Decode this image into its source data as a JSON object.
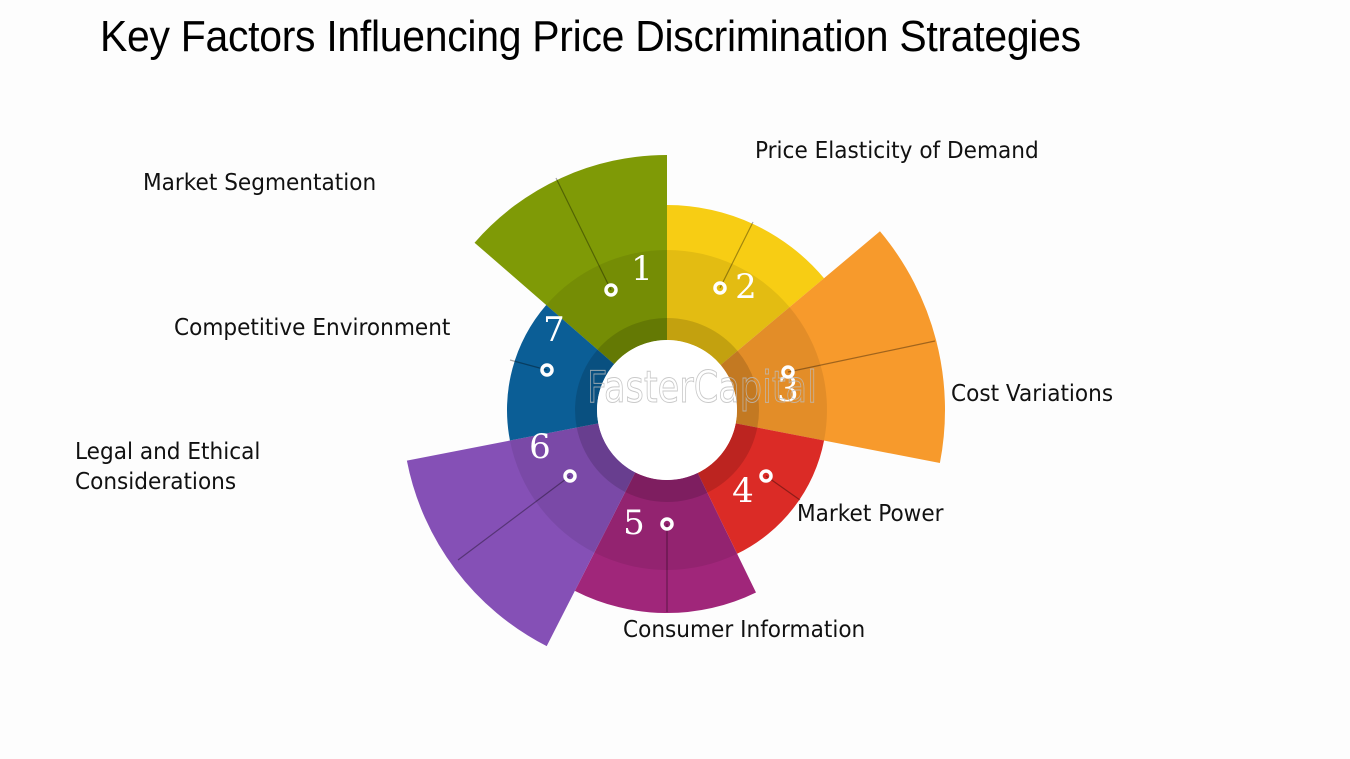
{
  "title": "Key Factors Influencing Price Discrimination Strategies",
  "watermark": "FasterCapital",
  "chart_data": {
    "type": "radial-bar",
    "center": [
      667,
      410
    ],
    "inner_radius": 70,
    "factors": [
      {
        "number": "1",
        "label": "Market Segmentation",
        "color": "#7f9a06",
        "start_deg": -139,
        "end_deg": -90,
        "outer_radius": 255
      },
      {
        "number": "2",
        "label": "Price Elasticity of Demand",
        "color": "#f7cd14",
        "start_deg": -90,
        "end_deg": -40,
        "outer_radius": 205
      },
      {
        "number": "3",
        "label": "Cost Variations",
        "color": "#f79a2c",
        "start_deg": -40,
        "end_deg": 11,
        "outer_radius": 278
      },
      {
        "number": "4",
        "label": "Market Power",
        "color": "#db2b26",
        "start_deg": 11,
        "end_deg": 64,
        "outer_radius": 160
      },
      {
        "number": "5",
        "label": "Consumer Information",
        "color": "#a0267a",
        "start_deg": 64,
        "end_deg": 117,
        "outer_radius": 203
      },
      {
        "number": "6",
        "label": "Legal and Ethical Considerations",
        "color": "#8550b6",
        "start_deg": 117,
        "end_deg": 169,
        "outer_radius": 265
      },
      {
        "number": "7",
        "label": "Competitive Environment",
        "color": "#0b5e96",
        "start_deg": 169,
        "end_deg": 221,
        "outer_radius": 160
      }
    ]
  },
  "labels": {
    "l1": "Market Segmentation",
    "l2": "Price Elasticity of Demand",
    "l3": "Cost Variations",
    "l4": "Market Power",
    "l5": "Consumer Information",
    "l6a": "Legal and Ethical",
    "l6b": "Considerations",
    "l7": "Competitive Environment"
  }
}
